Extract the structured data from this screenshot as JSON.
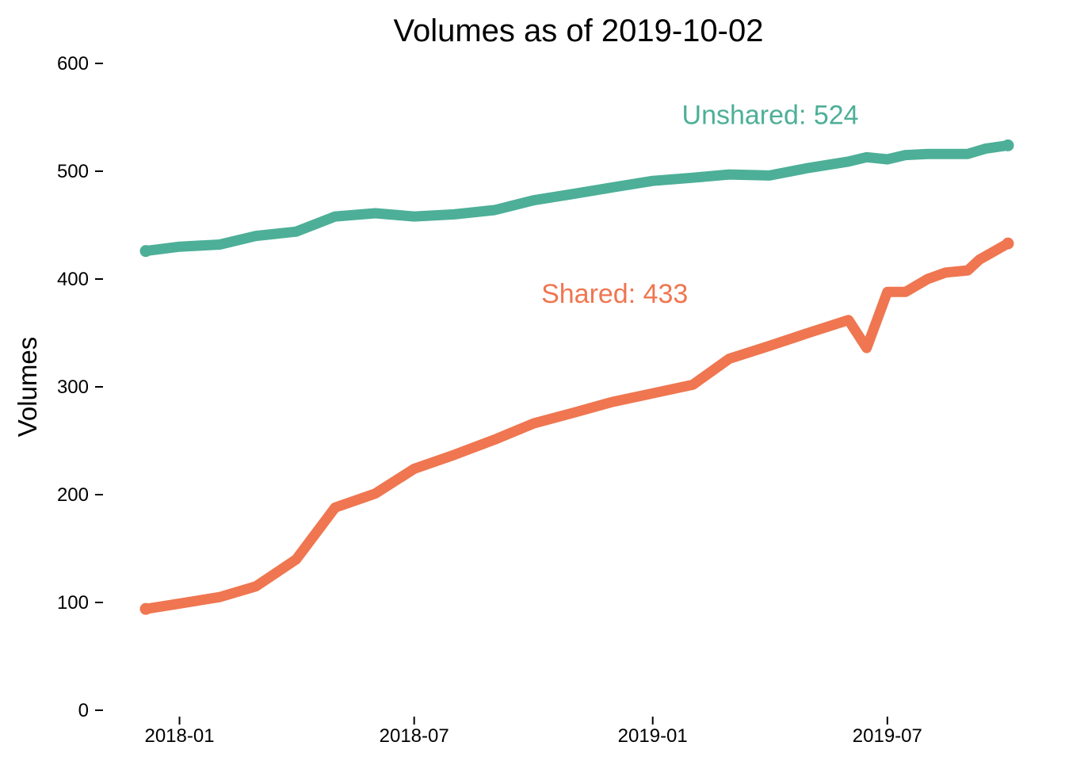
{
  "chart_data": {
    "type": "line",
    "title": "Volumes as of  2019-10-02",
    "xlabel": "",
    "ylabel": "Volumes",
    "ylim": [
      0,
      600
    ],
    "yticks": [
      0,
      100,
      200,
      300,
      400,
      500,
      600
    ],
    "xticks": [
      "2018-01",
      "2018-07",
      "2019-01",
      "2019-07"
    ],
    "xlim": [
      "2017-12-06",
      "2019-10-02"
    ],
    "grid": false,
    "legend": "none",
    "series": [
      {
        "name": "Unshared",
        "color": "#4daf98",
        "label": "Unshared: 524",
        "points": [
          [
            "2017-12-06",
            426
          ],
          [
            "2018-01-01",
            430
          ],
          [
            "2018-02-01",
            432
          ],
          [
            "2018-03-01",
            440
          ],
          [
            "2018-04-01",
            444
          ],
          [
            "2018-05-01",
            458
          ],
          [
            "2018-06-01",
            461
          ],
          [
            "2018-07-01",
            458
          ],
          [
            "2018-08-01",
            460
          ],
          [
            "2018-09-01",
            464
          ],
          [
            "2018-10-01",
            473
          ],
          [
            "2018-11-01",
            479
          ],
          [
            "2018-12-01",
            485
          ],
          [
            "2019-01-01",
            491
          ],
          [
            "2019-02-01",
            494
          ],
          [
            "2019-03-01",
            497
          ],
          [
            "2019-04-01",
            496
          ],
          [
            "2019-05-01",
            503
          ],
          [
            "2019-06-01",
            509
          ],
          [
            "2019-06-15",
            513
          ],
          [
            "2019-07-01",
            511
          ],
          [
            "2019-07-15",
            515
          ],
          [
            "2019-08-01",
            516
          ],
          [
            "2019-08-15",
            516
          ],
          [
            "2019-09-01",
            516
          ],
          [
            "2019-09-15",
            521
          ],
          [
            "2019-10-02",
            524
          ]
        ]
      },
      {
        "name": "Shared",
        "color": "#ef7650",
        "label": "Shared: 433",
        "points": [
          [
            "2017-12-06",
            94
          ],
          [
            "2018-01-01",
            99
          ],
          [
            "2018-02-01",
            105
          ],
          [
            "2018-03-01",
            115
          ],
          [
            "2018-04-01",
            140
          ],
          [
            "2018-05-01",
            188
          ],
          [
            "2018-06-01",
            201
          ],
          [
            "2018-07-01",
            224
          ],
          [
            "2018-08-01",
            237
          ],
          [
            "2018-09-01",
            251
          ],
          [
            "2018-10-01",
            266
          ],
          [
            "2018-11-01",
            276
          ],
          [
            "2018-12-01",
            286
          ],
          [
            "2019-01-01",
            294
          ],
          [
            "2019-02-01",
            302
          ],
          [
            "2019-03-01",
            326
          ],
          [
            "2019-04-01",
            338
          ],
          [
            "2019-05-01",
            350
          ],
          [
            "2019-06-01",
            362
          ],
          [
            "2019-06-15",
            336
          ],
          [
            "2019-07-01",
            388
          ],
          [
            "2019-07-15",
            388
          ],
          [
            "2019-08-01",
            400
          ],
          [
            "2019-08-15",
            406
          ],
          [
            "2019-09-01",
            408
          ],
          [
            "2019-09-10",
            418
          ],
          [
            "2019-10-02",
            433
          ]
        ]
      }
    ]
  }
}
